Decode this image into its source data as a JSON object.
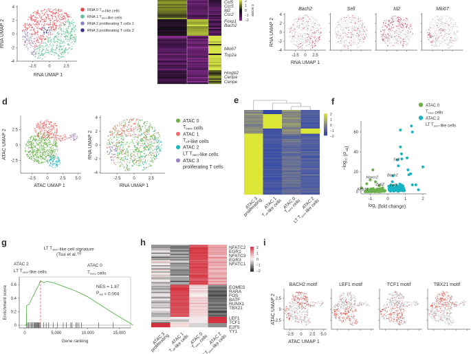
{
  "panel_labels": [
    "d",
    "e",
    "f",
    "g",
    "h",
    "i"
  ],
  "panel_a": {
    "x_label": "RNA UMAP 1",
    "y_label": "RNA UMAP 2",
    "x_ticks": [
      "-2.5",
      "0",
      "2.5"
    ],
    "y_ticks": [
      "4",
      "2",
      "0",
      "-2",
      "-4"
    ],
    "legend": [
      {
        "pre": "RNA 0 T",
        "sub": "eff",
        "post": "-like cells",
        "color": "#e8434a"
      },
      {
        "pre": "RNA 1 T",
        "sub": "stem",
        "post": "-like cells",
        "color": "#5fbf8f"
      },
      {
        "pre": "RNA 2 proliferating T cells 1",
        "sub": "",
        "post": "",
        "color": "#8a86c2"
      },
      {
        "pre": "RNA 3 proliferating T cells 2",
        "sub": "",
        "post": "",
        "color": "#3b3486"
      }
    ]
  },
  "panel_b": {
    "genes": [
      "Ccl5",
      "Ccr5",
      "Id2",
      "Ccr2",
      "Foxp1",
      "Bach2",
      "Mki67",
      "Top2a",
      "Hmgb2",
      "Cenpa",
      "Cenpe"
    ],
    "colorbar_ticks": [
      "2",
      "1",
      "0",
      "−1",
      "−2"
    ],
    "colorbar_label": "z score"
  },
  "panel_c": {
    "titles": [
      "Bach2",
      "Sell",
      "Id2",
      "Mki67"
    ],
    "x_label": "RNA UMAP 1",
    "y_label": "RNA UMAP 2",
    "x_ticks": [
      "-2.5",
      "0",
      "2.5"
    ],
    "y_ticks": [
      "4",
      "2",
      "0",
      "-2",
      "-4"
    ]
  },
  "panel_d": {
    "plot1": {
      "x_label": "ATAC UMAP 1",
      "y_label": "ATAC UMAP 2",
      "x_ticks": [
        "-2.5",
        "0",
        "2.5",
        "5.0"
      ],
      "y_ticks": [
        "2.5",
        "0",
        "-2.5"
      ]
    },
    "plot2": {
      "x_label": "RNA UMAP 1",
      "y_label": "RNA UMAP 2",
      "x_ticks": [
        "-2.5",
        "0",
        "2.5"
      ],
      "y_ticks": [
        "4",
        "2",
        "0",
        "-2",
        "-4"
      ]
    },
    "legend": [
      {
        "title": "ATAC 0",
        "pre": "T",
        "sub": "trans",
        "post": " cells",
        "color": "#6ab04c"
      },
      {
        "title": "ATAC 1",
        "pre": "T",
        "sub": "eff",
        "post": "-like cells",
        "color": "#ef6b6b"
      },
      {
        "title": "ATAC 2",
        "pre": "LT T",
        "sub": "stem",
        "post": "-like cells",
        "color": "#17b3c0"
      },
      {
        "title": "ATAC 3",
        "pre": "proliferating T cells",
        "sub": "",
        "post": "",
        "color": "#9b7cc0"
      }
    ]
  },
  "panel_e": {
    "columns": [
      {
        "title": "ATAC 3",
        "pre": "proliferating",
        "sub": "",
        "post": ""
      },
      {
        "title": "ATAC 1",
        "pre": "T",
        "sub": "eff",
        "post": "-like cells"
      },
      {
        "title": "ATAC 0",
        "pre": "T",
        "sub": "trans",
        "post": " cells"
      },
      {
        "title": "ATAC 2",
        "pre": "LT T",
        "sub": "stem",
        "post": "-like cells"
      }
    ],
    "colorbar_ticks": [
      "2",
      "1",
      "0",
      "−1",
      "−2"
    ]
  },
  "panel_f": {
    "x_label_pre": "log",
    "x_label_sub": "2",
    "x_label_post": " (fold change)",
    "y_label_pre": "−log",
    "y_label_sub": "10",
    "y_label_mid": " (P",
    "y_label_sub2": "adj",
    "y_label_post": ")",
    "x_ticks": [
      "-1",
      "0",
      "1",
      "2"
    ],
    "y_ticks": [
      "0",
      "20",
      "40",
      "60"
    ],
    "legend": [
      {
        "title": "ATAC 0",
        "pre": "T",
        "sub": "trans",
        "post": " cells",
        "color": "#6ab04c"
      },
      {
        "title": "ATAC 2",
        "pre": "LT T",
        "sub": "stem",
        "post": "-like cells",
        "color": "#17b3c0"
      }
    ]
  },
  "panel_g": {
    "title_pre": "LT T",
    "title_sub": "stem",
    "title_post": "-like cell signature",
    "citation_pre": "(Tsui et al.",
    "citation_sup": "28",
    "citation_post": ")",
    "left_title": "ATAC 2",
    "left_pre": "LT T",
    "left_sub": "stem",
    "left_post": "-like cells",
    "right_title": "ATAC 0",
    "right_pre": "T",
    "right_sub": "trans",
    "right_post": " cells",
    "nes": "NES = 1.87",
    "padj_pre": "P",
    "padj_sub": "adj",
    "padj_post": " = 0.004",
    "x_label": "Gene ranking",
    "y_label": "Enrichment score",
    "x_ticks": [
      "0",
      "5,000",
      "10,000",
      "15,000"
    ],
    "y_ticks": [
      "0",
      "0.2",
      "0.4",
      "0.6"
    ]
  },
  "panel_h": {
    "genes": [
      {
        "name": "NFATC2",
        "group": 0
      },
      {
        "name": "EGR1",
        "group": 0
      },
      {
        "name": "NFATC3",
        "group": 0
      },
      {
        "name": "EGR3",
        "group": 0
      },
      {
        "name": "NFATC1",
        "group": 0
      },
      {
        "name": "EOMES",
        "group": 1
      },
      {
        "name": "RARA",
        "group": 1
      },
      {
        "name": "FOS",
        "group": 1
      },
      {
        "name": "BATF",
        "group": 1
      },
      {
        "name": "RUNX1",
        "group": 1
      },
      {
        "name": "TBX21",
        "group": 1
      },
      {
        "name": "LEF1",
        "group": 2
      },
      {
        "name": "TCF1",
        "group": 2
      },
      {
        "name": "E2F5",
        "group": 3
      },
      {
        "name": "YY1",
        "group": 3
      }
    ],
    "columns": [
      {
        "title": "ATAC 3",
        "pre": "proliferating",
        "sub": "",
        "post": ""
      },
      {
        "title": "ATAC 1",
        "pre": "T",
        "sub": "eff",
        "post": "-like cells"
      },
      {
        "title": "ATAC 0",
        "pre": "T",
        "sub": "trans",
        "post": " cells"
      },
      {
        "title": "ATAC 2",
        "pre": "LT T",
        "sub": "stem",
        "post": "-like cells"
      }
    ],
    "colorbar_ticks": [
      "2",
      "1",
      "0",
      "−1",
      "−2"
    ]
  },
  "panel_i": {
    "titles": [
      "BACH2 motif",
      "LEF1 motif",
      "TCF1 motif",
      "TBX21 motif"
    ],
    "x_label": "ATAC UMAP 1",
    "y_label": "ATAC UMAP 2",
    "x_ticks": [
      "-2.5",
      "0",
      "2.5",
      "5.0"
    ],
    "y_ticks": [
      "2.5",
      "0",
      "-2.5"
    ]
  },
  "colors": {
    "expression": "#c0304a",
    "motif": "#e53a2f",
    "background_point": "#bdbdbd"
  },
  "chart_data": [
    {
      "type": "line",
      "panel": "g",
      "title": "LT Tstem-like cell signature (Tsui et al.28)",
      "xlabel": "Gene ranking",
      "ylabel": "Enrichment score",
      "xlim": [
        0,
        17500
      ],
      "ylim": [
        -0.05,
        0.7
      ],
      "grid": false,
      "x": [
        0,
        250,
        300,
        700,
        900,
        1200,
        1500,
        1800,
        2200,
        2500,
        3000,
        3500,
        4500,
        6000,
        8000,
        10000,
        12000,
        14000,
        17200
      ],
      "y": [
        0,
        0,
        0.29,
        0.31,
        0.35,
        0.41,
        0.46,
        0.52,
        0.59,
        0.66,
        0.63,
        0.65,
        0.63,
        0.58,
        0.51,
        0.42,
        0.3,
        0.18,
        0
      ],
      "leading_edge_rank": 2500,
      "hits": [
        300,
        450,
        600,
        800,
        1000,
        1150,
        1300,
        1450,
        1600,
        1700,
        1800,
        1900,
        2000,
        2100,
        2200,
        2300,
        2450,
        3000,
        3400,
        3800,
        4500,
        5200,
        6100,
        6600,
        7300,
        7500,
        8100,
        8300,
        8600,
        9000,
        11700,
        14000
      ],
      "annotations": [
        "NES = 1.87",
        "Padj = 0.004"
      ]
    },
    {
      "type": "scatter",
      "panel": "f",
      "xlabel": "log2 (fold change)",
      "ylabel": "-log10 (Padj)",
      "xlim": [
        -1.6,
        2.1
      ],
      "ylim": [
        0,
        70
      ],
      "legend": "top-right",
      "series": [
        {
          "name": "ATAC 0 Ttrans cells",
          "points": [
            [
              -0.85,
              22
            ],
            [
              -1.0,
              12
            ],
            [
              -1.5,
              4
            ],
            [
              -1.2,
              8
            ],
            [
              -0.7,
              10
            ],
            [
              -0.5,
              6
            ],
            [
              -0.3,
              4
            ]
          ]
        },
        {
          "name": "ATAC 2 LT Tstem-like cells",
          "points": [
            [
              0.72,
              62
            ],
            [
              1.35,
              66
            ],
            [
              1.4,
              60
            ],
            [
              0.72,
              45
            ],
            [
              0.78,
              38
            ],
            [
              0.55,
              32
            ],
            [
              0.8,
              33
            ],
            [
              1.1,
              34
            ],
            [
              2.0,
              25
            ],
            [
              0.6,
              26
            ],
            [
              1.15,
              22
            ],
            [
              1.2,
              17
            ],
            [
              1.3,
              18
            ],
            [
              1.6,
              7
            ],
            [
              1.75,
              2
            ],
            [
              1.4,
              7
            ],
            [
              0.3,
              16
            ]
          ]
        }
      ],
      "labeled_genes": [
        {
          "gene": "Havcr2",
          "x": -1.0,
          "y": 12
        },
        {
          "gene": "Klrb1c",
          "x": -1.5,
          "y": 0
        },
        {
          "gene": "Zeb2",
          "x": -0.45,
          "y": 5
        },
        {
          "gene": "Sell",
          "x": 0.55,
          "y": 30
        },
        {
          "gene": "Bach2",
          "x": 0.2,
          "y": 14
        },
        {
          "gene": "Lef1",
          "x": 0.35,
          "y": 4
        }
      ]
    }
  ]
}
